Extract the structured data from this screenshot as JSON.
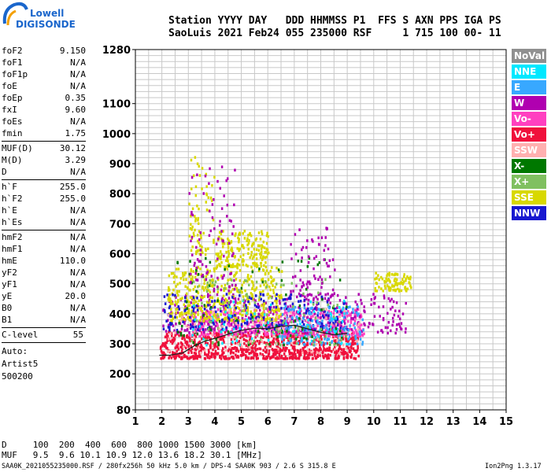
{
  "logo": {
    "line1": "Lowell",
    "line2": "DIGISONDE"
  },
  "header": {
    "line1": "Station YYYY DAY   DDD HHMMSS P1  FFS S AXN PPS IGA PS",
    "line2": "SaoLuis 2021 Feb24 055 235000 RSF     1 715 100 00- 11"
  },
  "params_group1": [
    {
      "name": "foF2",
      "value": "9.150"
    },
    {
      "name": "foF1",
      "value": "N/A"
    },
    {
      "name": "foF1p",
      "value": "N/A"
    },
    {
      "name": "foE",
      "value": "N/A"
    },
    {
      "name": "foEp",
      "value": "0.35"
    },
    {
      "name": "fxI",
      "value": "9.60"
    },
    {
      "name": "foEs",
      "value": "N/A"
    },
    {
      "name": "fmin",
      "value": "1.75"
    }
  ],
  "params_group2": [
    {
      "name": "MUF(D)",
      "value": "30.12"
    },
    {
      "name": "M(D)",
      "value": "3.29"
    },
    {
      "name": "D",
      "value": "N/A"
    }
  ],
  "params_group3": [
    {
      "name": "h`F",
      "value": "255.0"
    },
    {
      "name": "h`F2",
      "value": "255.0"
    },
    {
      "name": "h`E",
      "value": "N/A"
    },
    {
      "name": "h`Es",
      "value": "N/A"
    }
  ],
  "params_group4": [
    {
      "name": "hmF2",
      "value": "N/A"
    },
    {
      "name": "hmF1",
      "value": "N/A"
    },
    {
      "name": "hmE",
      "value": "110.0"
    },
    {
      "name": "yF2",
      "value": "N/A"
    },
    {
      "name": "yF1",
      "value": "N/A"
    },
    {
      "name": "yE",
      "value": "20.0"
    },
    {
      "name": "B0",
      "value": "N/A"
    },
    {
      "name": "B1",
      "value": "N/A"
    }
  ],
  "c_level": {
    "name": "C-level",
    "value": "55"
  },
  "auto": {
    "line1": "Auto:",
    "line2": "Artist5",
    "line3": "500200"
  },
  "legend": [
    {
      "label": "NoVal",
      "bg": "#909090",
      "fg": "#ffffff"
    },
    {
      "label": "NNE",
      "bg": "#00e8ff",
      "fg": "#ffffff"
    },
    {
      "label": "E",
      "bg": "#38a8ff",
      "fg": "#ffffff"
    },
    {
      "label": "W",
      "bg": "#b000b0",
      "fg": "#ffffff"
    },
    {
      "label": "Vo-",
      "bg": "#ff40c0",
      "fg": "#ffffff"
    },
    {
      "label": "Vo+",
      "bg": "#f0103c",
      "fg": "#ffffff"
    },
    {
      "label": "SSW",
      "bg": "#ffb0b0",
      "fg": "#ffffff"
    },
    {
      "label": "X-",
      "bg": "#007800",
      "fg": "#ffffff"
    },
    {
      "label": "X+",
      "bg": "#80c060",
      "fg": "#ffffff"
    },
    {
      "label": "SSE",
      "bg": "#d8d800",
      "fg": "#ffffff"
    },
    {
      "label": "NNW",
      "bg": "#1818d0",
      "fg": "#ffffff"
    }
  ],
  "bottom": {
    "d_row": "D     100  200  400  600  800 1000 1500 3000 [km]",
    "muf_row": "MUF   9.5  9.6 10.1 10.9 12.0 13.6 18.2 30.1 [MHz]"
  },
  "footer": {
    "left": "SAA0K_2021055235000.RSF / 280fx256h 50 kHz 5.0 km / DPS-4 SAA0K 903 / 2.6 S 315.8 E",
    "right": "Ion2Png 1.3.17"
  },
  "chart_data": {
    "type": "scatter",
    "title": "",
    "xlabel": "",
    "ylabel": "",
    "xlim": [
      1,
      15
    ],
    "ylim": [
      80,
      1280
    ],
    "x_ticks": [
      1,
      2,
      3,
      4,
      5,
      6,
      7,
      8,
      9,
      10,
      11,
      12,
      13,
      14,
      15
    ],
    "y_ticks": [
      80,
      200,
      300,
      400,
      500,
      600,
      700,
      800,
      900,
      1000,
      1100,
      1280
    ],
    "grid": true,
    "legend_placement": "right",
    "clusters": [
      {
        "color": "#f0103c",
        "xmin": 1.9,
        "xmax": 9.4,
        "ymin": 255,
        "ymax": 345,
        "n": 900
      },
      {
        "color": "#ff40c0",
        "xmin": 3.0,
        "xmax": 9.6,
        "ymin": 330,
        "ymax": 420,
        "n": 500
      },
      {
        "color": "#b000b0",
        "xmin": 2.0,
        "xmax": 11.2,
        "ymin": 340,
        "ymax": 470,
        "n": 380
      },
      {
        "color": "#d8d800",
        "xmin": 2.2,
        "xmax": 6.5,
        "ymin": 380,
        "ymax": 560,
        "n": 450
      },
      {
        "color": "#d8d800",
        "xmin": 4.0,
        "xmax": 6.0,
        "ymin": 560,
        "ymax": 680,
        "n": 180
      },
      {
        "color": "#d8d800",
        "xmin": 10.0,
        "xmax": 11.4,
        "ymin": 480,
        "ymax": 540,
        "n": 90
      },
      {
        "color": "#1818d0",
        "xmin": 2.0,
        "xmax": 9.0,
        "ymin": 350,
        "ymax": 470,
        "n": 220
      },
      {
        "color": "#38a8ff",
        "xmin": 6.5,
        "xmax": 9.6,
        "ymin": 300,
        "ymax": 430,
        "n": 160
      },
      {
        "color": "#00e8ff",
        "xmin": 3.0,
        "xmax": 9.0,
        "ymin": 300,
        "ymax": 450,
        "n": 80
      },
      {
        "color": "#007800",
        "xmin": 2.5,
        "xmax": 9.0,
        "ymin": 300,
        "ymax": 600,
        "n": 90
      },
      {
        "color": "#80c060",
        "xmin": 3.0,
        "xmax": 9.0,
        "ymin": 300,
        "ymax": 520,
        "n": 110
      },
      {
        "color": "#ffb0b0",
        "xmin": 2.0,
        "xmax": 9.5,
        "ymin": 270,
        "ymax": 420,
        "n": 90
      },
      {
        "color": "#d8d800",
        "xmin": 3.0,
        "xmax": 4.0,
        "ymin": 600,
        "ymax": 930,
        "n": 70
      },
      {
        "color": "#b000b0",
        "xmin": 3.0,
        "xmax": 4.8,
        "ymin": 480,
        "ymax": 900,
        "n": 90
      },
      {
        "color": "#b000b0",
        "xmin": 6.8,
        "xmax": 8.5,
        "ymin": 450,
        "ymax": 700,
        "n": 80
      }
    ],
    "trace_line": {
      "color": "#202020",
      "points": [
        [
          1.9,
          262
        ],
        [
          2.3,
          262
        ],
        [
          2.8,
          270
        ],
        [
          3.2,
          292
        ],
        [
          3.6,
          308
        ],
        [
          4.0,
          318
        ],
        [
          4.5,
          332
        ],
        [
          5.0,
          345
        ],
        [
          5.5,
          352
        ],
        [
          6.0,
          350
        ],
        [
          6.5,
          358
        ],
        [
          7.0,
          362
        ],
        [
          7.5,
          350
        ],
        [
          8.0,
          338
        ],
        [
          8.5,
          330
        ],
        [
          9.0,
          335
        ]
      ]
    }
  }
}
